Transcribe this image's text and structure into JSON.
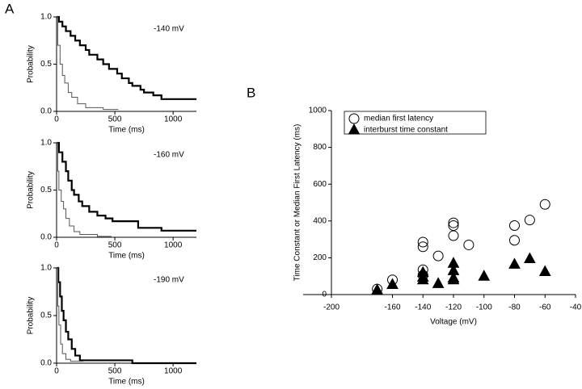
{
  "panel_labels": [
    "A",
    "B"
  ],
  "chart_data": [
    {
      "type": "line",
      "annotation": "-140 mV",
      "xlabel": "Time (ms)",
      "ylabel": "Probability",
      "xlim": [
        0,
        1200
      ],
      "ylim": [
        0,
        1
      ],
      "xticks": [
        0,
        500,
        1000
      ],
      "yticks": [
        {
          "value": 0,
          "label": "0.0"
        },
        0.5,
        {
          "value": 1,
          "label": "1.0"
        }
      ],
      "series": [
        {
          "color": "#000000",
          "line_width": 2.2,
          "x": [
            0,
            20,
            20,
            50,
            50,
            80,
            80,
            120,
            120,
            160,
            160,
            200,
            200,
            250,
            250,
            280,
            280,
            350,
            350,
            400,
            400,
            450,
            450,
            520,
            520,
            560,
            560,
            620,
            620,
            650,
            650,
            720,
            720,
            750,
            750,
            830,
            830,
            900,
            900,
            1200
          ],
          "values": [
            1,
            1,
            0.95,
            0.95,
            0.9,
            0.9,
            0.85,
            0.85,
            0.8,
            0.8,
            0.75,
            0.75,
            0.7,
            0.7,
            0.65,
            0.65,
            0.6,
            0.6,
            0.55,
            0.55,
            0.5,
            0.5,
            0.45,
            0.45,
            0.4,
            0.4,
            0.35,
            0.35,
            0.3,
            0.3,
            0.27,
            0.27,
            0.23,
            0.23,
            0.2,
            0.2,
            0.17,
            0.17,
            0.13,
            0.13
          ]
        },
        {
          "color": "#555555",
          "line_width": 1,
          "x": [
            0,
            10,
            10,
            30,
            30,
            50,
            50,
            70,
            70,
            100,
            100,
            130,
            130,
            180,
            180,
            250,
            250,
            400,
            400,
            530
          ],
          "values": [
            1,
            1,
            0.7,
            0.7,
            0.5,
            0.5,
            0.38,
            0.38,
            0.3,
            0.3,
            0.2,
            0.2,
            0.15,
            0.15,
            0.08,
            0.08,
            0.04,
            0.04,
            0.02,
            0.02
          ]
        }
      ]
    },
    {
      "type": "line",
      "annotation": "-160 mV",
      "xlabel": "Time (ms)",
      "ylabel": "Probability",
      "xlim": [
        0,
        1200
      ],
      "ylim": [
        0,
        1
      ],
      "xticks": [
        0,
        500,
        1000
      ],
      "yticks": [
        {
          "value": 0,
          "label": "0.0"
        },
        0.5,
        {
          "value": 1,
          "label": "1.0"
        }
      ],
      "series": [
        {
          "color": "#000000",
          "line_width": 2.2,
          "x": [
            0,
            20,
            20,
            50,
            50,
            80,
            80,
            100,
            100,
            130,
            130,
            150,
            150,
            190,
            190,
            220,
            220,
            280,
            280,
            350,
            350,
            420,
            420,
            480,
            480,
            700,
            700,
            900,
            900,
            1200
          ],
          "values": [
            1,
            1,
            0.9,
            0.9,
            0.8,
            0.8,
            0.7,
            0.7,
            0.6,
            0.6,
            0.5,
            0.5,
            0.45,
            0.45,
            0.38,
            0.38,
            0.33,
            0.33,
            0.27,
            0.27,
            0.23,
            0.23,
            0.2,
            0.2,
            0.17,
            0.17,
            0.1,
            0.1,
            0.07,
            0.07
          ]
        },
        {
          "color": "#555555",
          "line_width": 1,
          "x": [
            0,
            10,
            10,
            20,
            20,
            40,
            40,
            60,
            60,
            80,
            80,
            110,
            110,
            150,
            150,
            200,
            200,
            350,
            350,
            470
          ],
          "values": [
            1,
            1,
            0.7,
            0.7,
            0.5,
            0.5,
            0.38,
            0.38,
            0.3,
            0.3,
            0.2,
            0.2,
            0.12,
            0.12,
            0.06,
            0.06,
            0.03,
            0.03,
            0.01,
            0.01
          ]
        }
      ]
    },
    {
      "type": "line",
      "annotation": "-190 mV",
      "xlabel": "Time (ms)",
      "ylabel": "Probability",
      "xlim": [
        0,
        1200
      ],
      "ylim": [
        0,
        1
      ],
      "xticks": [
        0,
        500,
        1000
      ],
      "yticks": [
        {
          "value": 0,
          "label": "0.0"
        },
        0.5,
        {
          "value": 1,
          "label": "1.0"
        }
      ],
      "series": [
        {
          "color": "#000000",
          "line_width": 2.2,
          "x": [
            0,
            15,
            15,
            30,
            30,
            45,
            45,
            60,
            60,
            80,
            80,
            100,
            100,
            130,
            130,
            160,
            160,
            200,
            200,
            650,
            650,
            1200
          ],
          "values": [
            1,
            1,
            0.85,
            0.85,
            0.7,
            0.7,
            0.55,
            0.55,
            0.45,
            0.45,
            0.33,
            0.33,
            0.25,
            0.25,
            0.15,
            0.15,
            0.08,
            0.08,
            0.03,
            0.03,
            0,
            0
          ]
        },
        {
          "color": "#555555",
          "line_width": 1,
          "x": [
            0,
            10,
            10,
            20,
            20,
            35,
            35,
            50,
            50,
            80,
            80,
            120,
            120,
            230
          ],
          "values": [
            1,
            1,
            0.6,
            0.6,
            0.4,
            0.4,
            0.2,
            0.2,
            0.1,
            0.1,
            0.04,
            0.04,
            0.02,
            0.02
          ]
        }
      ]
    },
    {
      "type": "scatter",
      "xlabel": "Voltage (mV)",
      "ylabel": "Time Constant  or Median First Latency (ms)",
      "xlim": [
        -200,
        -40
      ],
      "ylim": [
        0,
        1000
      ],
      "xticks": [
        -200,
        -160,
        -140,
        -120,
        -100,
        -80,
        -60,
        -40
      ],
      "yticks": [
        0,
        200,
        400,
        600,
        800,
        1000
      ],
      "series": [
        {
          "name": "median first latency",
          "color": "#000000",
          "marker": "circle",
          "filled": false,
          "x": [
            -170,
            -160,
            -140,
            -140,
            -140,
            -140,
            -130,
            -120,
            -120,
            -120,
            -110,
            -80,
            -80,
            -70,
            -60
          ],
          "values": [
            30,
            80,
            285,
            260,
            135,
            105,
            210,
            390,
            375,
            320,
            270,
            375,
            295,
            405,
            490
          ]
        },
        {
          "name": "interburst time constant",
          "color": "#000000",
          "marker": "triangle",
          "filled": true,
          "x": [
            -170,
            -160,
            -140,
            -140,
            -140,
            -130,
            -120,
            -120,
            -120,
            -120,
            -100,
            -80,
            -70,
            -60
          ],
          "values": [
            25,
            55,
            120,
            95,
            80,
            60,
            170,
            130,
            90,
            80,
            100,
            165,
            195,
            125
          ]
        }
      ]
    }
  ]
}
